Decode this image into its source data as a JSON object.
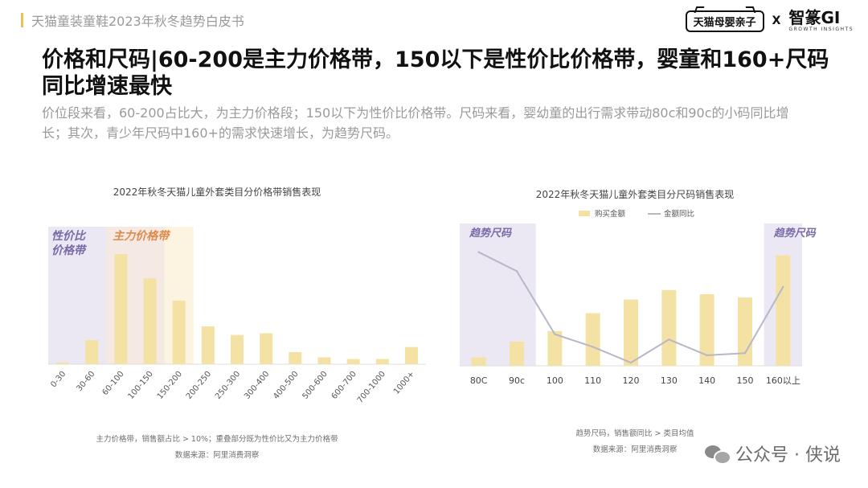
{
  "header": {
    "report_title": "天猫童装童鞋2023年秋冬趋势白皮书",
    "logo_tmall": "天猫母婴亲子",
    "logo_x": "X",
    "logo_gi": "智篆GI",
    "logo_gi_sub": "GROWTH INSIGHTS"
  },
  "headline_line1": "价格和尺码|60-200是主力价格带，150以下是性价比价格带，婴童和160+尺码",
  "headline_line2": "同比增速最快",
  "description_line1": "价位段来看，60-200占比大，为主力价格段；150以下为性价比价格带。尺码来看，婴幼童的出行需求带动80c和90c的小码同比增",
  "description_line2": "长；其次，青少年尺码中160+的需求快速增长，为趋势尺码。",
  "colors": {
    "bar": "#f3e2a4",
    "band_purple": "#ebe8f3",
    "band_orange": "#fdf1dc",
    "band_purple_text": "#7a6aa8",
    "band_orange_text": "#e08a4a",
    "line": "#b9b6c8"
  },
  "chart_data": [
    {
      "type": "bar",
      "title": "2022年秋冬天猫儿童外套类目分价格带销售表现",
      "categories": [
        "0-30",
        "30-60",
        "60-100",
        "100-150",
        "150-200",
        "200-250",
        "250-300",
        "300-400",
        "400-500",
        "500-600",
        "600-700",
        "700-1000",
        "1000+"
      ],
      "series": [
        {
          "values": [
            1,
            14,
            64,
            50,
            37,
            22,
            17,
            18,
            7,
            4,
            3,
            3,
            10
          ]
        }
      ],
      "ylim": [
        0,
        80
      ],
      "highlight_bands": [
        {
          "label_line1": "性价比",
          "label_line2": "价格带",
          "from_index": 0,
          "to_index": 3
        },
        {
          "label_line1": "主力价格带",
          "label_line2": "",
          "from_index": 2,
          "to_index": 4
        }
      ],
      "note": "主力价格带，销售额占比 > 10%；重叠部分既为性价比又为主力价格带",
      "source": "数据来源：阿里消费洞察"
    },
    {
      "type": "bar+line",
      "title": "2022年秋冬天猫儿童外套类目分尺码销售表现",
      "categories": [
        "80C",
        "90c",
        "100",
        "110",
        "120",
        "130",
        "140",
        "150",
        "160以上"
      ],
      "series": [
        {
          "name": "购买金额",
          "type": "bar",
          "values": [
            8,
            23,
            33,
            50,
            63,
            72,
            68,
            65,
            105
          ]
        },
        {
          "name": "金额同比",
          "type": "line",
          "values": [
            108,
            90,
            30,
            18,
            3,
            25,
            10,
            12,
            75
          ]
        }
      ],
      "ylim": [
        0,
        120
      ],
      "highlight_bands": [
        {
          "label": "趋势尺码",
          "from_index": 0,
          "to_index": 1
        },
        {
          "label": "趋势尺码",
          "from_index": 8,
          "to_index": 8
        }
      ],
      "legend_position": "top-center",
      "note": "趋势尺码，销售额同比 > 类目均值",
      "source": "数据来源：阿里消费洞察"
    }
  ],
  "watermark": "公众号 · 侠说"
}
